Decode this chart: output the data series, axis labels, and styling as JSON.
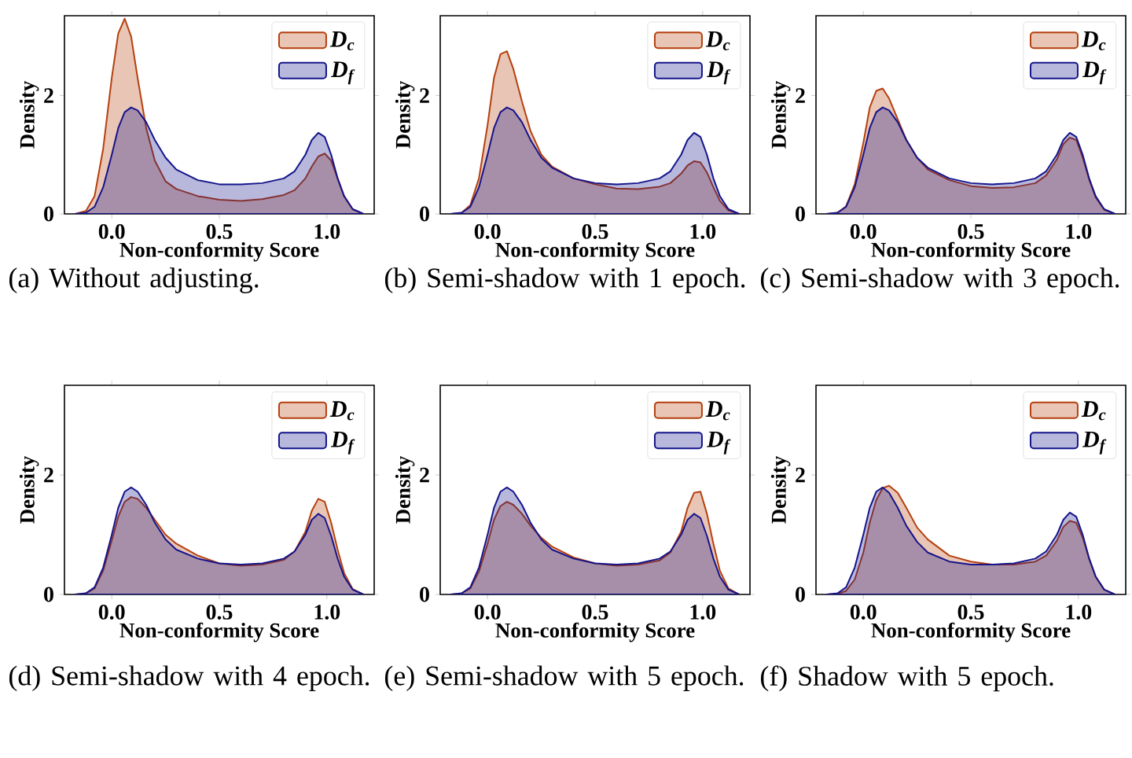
{
  "chart_data": [
    {
      "type": "area",
      "x": [
        -0.17,
        -0.12,
        -0.08,
        -0.04,
        0,
        0.03,
        0.06,
        0.09,
        0.12,
        0.16,
        0.2,
        0.25,
        0.3,
        0.4,
        0.5,
        0.6,
        0.7,
        0.8,
        0.85,
        0.9,
        0.93,
        0.96,
        0.99,
        1.02,
        1.05,
        1.08,
        1.12,
        1.17
      ],
      "series": [
        {
          "name": "D$_{c}$",
          "color": "#b5400e",
          "values": [
            0,
            0.05,
            0.3,
            1.1,
            2.3,
            3.05,
            3.3,
            3.0,
            2.3,
            1.45,
            0.9,
            0.55,
            0.42,
            0.3,
            0.24,
            0.22,
            0.25,
            0.32,
            0.4,
            0.6,
            0.8,
            0.97,
            1.02,
            0.9,
            0.6,
            0.3,
            0.08,
            0
          ]
        },
        {
          "name": "D$_{f}$",
          "color": "#14148c",
          "values": [
            0,
            0.02,
            0.12,
            0.45,
            1.0,
            1.45,
            1.72,
            1.8,
            1.75,
            1.55,
            1.25,
            0.95,
            0.75,
            0.57,
            0.5,
            0.5,
            0.52,
            0.6,
            0.72,
            1.0,
            1.25,
            1.37,
            1.3,
            1.0,
            0.6,
            0.3,
            0.08,
            0
          ]
        }
      ],
      "xlim": [
        -0.22,
        1.22
      ],
      "ylim": [
        0,
        3.35
      ],
      "xticks": [
        {
          "value": 0,
          "label": "0.0"
        },
        {
          "value": 0.5,
          "label": "0.5"
        },
        {
          "value": 1,
          "label": "1.0"
        }
      ],
      "yticks": [
        0,
        2
      ],
      "xlabel": "Non-conformity Score",
      "ylabel": "Density",
      "legend": "top right",
      "annotations": [
        "(a) Without adjusting."
      ]
    },
    {
      "type": "area",
      "x": [
        -0.17,
        -0.12,
        -0.08,
        -0.04,
        0,
        0.03,
        0.06,
        0.09,
        0.12,
        0.16,
        0.2,
        0.25,
        0.3,
        0.4,
        0.5,
        0.6,
        0.7,
        0.8,
        0.85,
        0.9,
        0.93,
        0.96,
        0.99,
        1.02,
        1.05,
        1.08,
        1.12,
        1.17
      ],
      "series": [
        {
          "name": "D$_{c}$",
          "color": "#b5400e",
          "values": [
            0,
            0.02,
            0.15,
            0.6,
            1.5,
            2.3,
            2.7,
            2.75,
            2.45,
            1.9,
            1.4,
            1.0,
            0.8,
            0.6,
            0.5,
            0.43,
            0.42,
            0.46,
            0.52,
            0.68,
            0.82,
            0.89,
            0.87,
            0.7,
            0.45,
            0.22,
            0.06,
            0
          ]
        },
        {
          "name": "D$_{f}$",
          "color": "#14148c",
          "values": [
            0,
            0.02,
            0.12,
            0.45,
            1.0,
            1.45,
            1.72,
            1.8,
            1.75,
            1.55,
            1.25,
            0.95,
            0.78,
            0.6,
            0.52,
            0.5,
            0.52,
            0.6,
            0.72,
            1.0,
            1.25,
            1.37,
            1.3,
            1.0,
            0.6,
            0.3,
            0.08,
            0
          ]
        }
      ],
      "xlim": [
        -0.22,
        1.22
      ],
      "ylim": [
        0,
        3.35
      ],
      "xticks": [
        {
          "value": 0,
          "label": "0.0"
        },
        {
          "value": 0.5,
          "label": "0.5"
        },
        {
          "value": 1,
          "label": "1.0"
        }
      ],
      "yticks": [
        0,
        2
      ],
      "xlabel": "Non-conformity Score",
      "ylabel": "Density",
      "legend": "top right",
      "annotations": [
        "(b) Semi-shadow with 1 epoch."
      ]
    },
    {
      "type": "area",
      "x": [
        -0.17,
        -0.12,
        -0.08,
        -0.04,
        0,
        0.03,
        0.06,
        0.09,
        0.12,
        0.16,
        0.2,
        0.25,
        0.3,
        0.4,
        0.5,
        0.6,
        0.7,
        0.8,
        0.85,
        0.9,
        0.93,
        0.96,
        0.99,
        1.02,
        1.05,
        1.08,
        1.12,
        1.17
      ],
      "series": [
        {
          "name": "D$_{c}$",
          "color": "#b5400e",
          "values": [
            0,
            0.02,
            0.13,
            0.5,
            1.2,
            1.8,
            2.08,
            2.12,
            1.95,
            1.6,
            1.25,
            0.95,
            0.75,
            0.57,
            0.47,
            0.44,
            0.45,
            0.52,
            0.65,
            0.92,
            1.18,
            1.29,
            1.25,
            0.95,
            0.58,
            0.28,
            0.07,
            0
          ]
        },
        {
          "name": "D$_{f}$",
          "color": "#14148c",
          "values": [
            0,
            0.02,
            0.12,
            0.45,
            1.0,
            1.45,
            1.72,
            1.8,
            1.75,
            1.55,
            1.25,
            0.95,
            0.78,
            0.6,
            0.52,
            0.5,
            0.52,
            0.6,
            0.72,
            1.0,
            1.25,
            1.37,
            1.3,
            1.0,
            0.6,
            0.3,
            0.08,
            0
          ]
        }
      ],
      "xlim": [
        -0.22,
        1.22
      ],
      "ylim": [
        0,
        3.35
      ],
      "xticks": [
        {
          "value": 0,
          "label": "0.0"
        },
        {
          "value": 0.5,
          "label": "0.5"
        },
        {
          "value": 1,
          "label": "1.0"
        }
      ],
      "yticks": [
        0,
        2
      ],
      "xlabel": "Non-conformity Score",
      "ylabel": "Density",
      "legend": "top right",
      "annotations": [
        "(c) Semi-shadow with 3 epoch."
      ]
    },
    {
      "type": "area",
      "x": [
        -0.17,
        -0.12,
        -0.08,
        -0.04,
        0,
        0.03,
        0.06,
        0.09,
        0.12,
        0.16,
        0.2,
        0.25,
        0.3,
        0.4,
        0.5,
        0.6,
        0.7,
        0.8,
        0.85,
        0.9,
        0.93,
        0.96,
        0.99,
        1.02,
        1.05,
        1.08,
        1.12,
        1.17
      ],
      "series": [
        {
          "name": "D$_{c}$",
          "color": "#b5400e",
          "values": [
            0,
            0.02,
            0.1,
            0.4,
            0.9,
            1.3,
            1.55,
            1.63,
            1.6,
            1.45,
            1.25,
            1.0,
            0.85,
            0.65,
            0.52,
            0.48,
            0.5,
            0.58,
            0.72,
            1.05,
            1.4,
            1.6,
            1.55,
            1.2,
            0.75,
            0.36,
            0.09,
            0
          ]
        },
        {
          "name": "D$_{f}$",
          "color": "#14148c",
          "values": [
            0,
            0.02,
            0.12,
            0.45,
            1.0,
            1.45,
            1.72,
            1.79,
            1.72,
            1.5,
            1.2,
            0.92,
            0.75,
            0.6,
            0.52,
            0.5,
            0.52,
            0.6,
            0.72,
            1.0,
            1.25,
            1.35,
            1.28,
            0.98,
            0.6,
            0.3,
            0.08,
            0
          ]
        }
      ],
      "xlim": [
        -0.22,
        1.22
      ],
      "ylim": [
        0,
        3.5
      ],
      "xticks": [
        {
          "value": 0,
          "label": "0.0"
        },
        {
          "value": 0.5,
          "label": "0.5"
        },
        {
          "value": 1,
          "label": "1.0"
        }
      ],
      "yticks": [
        0,
        2
      ],
      "xlabel": "Non-conformity Score",
      "ylabel": "Density",
      "legend": "top right",
      "annotations": [
        "(d) Semi-shadow with 4 epoch."
      ]
    },
    {
      "type": "area",
      "x": [
        -0.17,
        -0.12,
        -0.08,
        -0.04,
        0,
        0.03,
        0.06,
        0.09,
        0.12,
        0.16,
        0.2,
        0.25,
        0.3,
        0.4,
        0.5,
        0.6,
        0.7,
        0.8,
        0.85,
        0.9,
        0.93,
        0.96,
        0.99,
        1.02,
        1.05,
        1.08,
        1.12,
        1.17
      ],
      "series": [
        {
          "name": "D$_{c}$",
          "color": "#b5400e",
          "values": [
            0,
            0.02,
            0.1,
            0.38,
            0.85,
            1.25,
            1.48,
            1.55,
            1.5,
            1.35,
            1.15,
            0.95,
            0.8,
            0.62,
            0.52,
            0.48,
            0.5,
            0.57,
            0.7,
            1.05,
            1.45,
            1.7,
            1.72,
            1.35,
            0.85,
            0.4,
            0.1,
            0
          ]
        },
        {
          "name": "D$_{f}$",
          "color": "#14148c",
          "values": [
            0,
            0.02,
            0.12,
            0.45,
            1.0,
            1.45,
            1.72,
            1.79,
            1.72,
            1.5,
            1.2,
            0.92,
            0.75,
            0.6,
            0.52,
            0.5,
            0.52,
            0.6,
            0.72,
            1.0,
            1.25,
            1.35,
            1.28,
            0.98,
            0.6,
            0.3,
            0.08,
            0
          ]
        }
      ],
      "xlim": [
        -0.22,
        1.22
      ],
      "ylim": [
        0,
        3.5
      ],
      "xticks": [
        {
          "value": 0,
          "label": "0.0"
        },
        {
          "value": 0.5,
          "label": "0.5"
        },
        {
          "value": 1,
          "label": "1.0"
        }
      ],
      "yticks": [
        0,
        2
      ],
      "xlabel": "Non-conformity Score",
      "ylabel": "Density",
      "legend": "top right",
      "annotations": [
        "(e) Semi-shadow with 5 epoch."
      ]
    },
    {
      "type": "area",
      "x": [
        -0.17,
        -0.12,
        -0.08,
        -0.04,
        0,
        0.03,
        0.06,
        0.09,
        0.12,
        0.16,
        0.2,
        0.25,
        0.3,
        0.4,
        0.5,
        0.6,
        0.7,
        0.8,
        0.85,
        0.9,
        0.93,
        0.96,
        0.99,
        1.02,
        1.05,
        1.08,
        1.12,
        1.17
      ],
      "series": [
        {
          "name": "D$_{c}$",
          "color": "#b5400e",
          "values": [
            0,
            0.01,
            0.06,
            0.25,
            0.7,
            1.2,
            1.58,
            1.78,
            1.82,
            1.7,
            1.45,
            1.12,
            0.92,
            0.65,
            0.55,
            0.5,
            0.5,
            0.55,
            0.65,
            0.9,
            1.13,
            1.23,
            1.2,
            0.95,
            0.6,
            0.3,
            0.08,
            0
          ]
        },
        {
          "name": "D$_{f}$",
          "color": "#14148c",
          "values": [
            0,
            0.02,
            0.12,
            0.45,
            1.0,
            1.45,
            1.72,
            1.79,
            1.7,
            1.45,
            1.15,
            0.88,
            0.7,
            0.55,
            0.5,
            0.5,
            0.52,
            0.6,
            0.72,
            1.0,
            1.25,
            1.37,
            1.3,
            1.0,
            0.6,
            0.3,
            0.08,
            0
          ]
        }
      ],
      "xlim": [
        -0.22,
        1.22
      ],
      "ylim": [
        0,
        3.5
      ],
      "xticks": [
        {
          "value": 0,
          "label": "0.0"
        },
        {
          "value": 0.5,
          "label": "0.5"
        },
        {
          "value": 1,
          "label": "1.0"
        }
      ],
      "yticks": [
        0,
        2
      ],
      "xlabel": "Non-conformity Score",
      "ylabel": "Density",
      "legend": "top right",
      "annotations": [
        "(f) Shadow with 5 epoch."
      ]
    }
  ]
}
